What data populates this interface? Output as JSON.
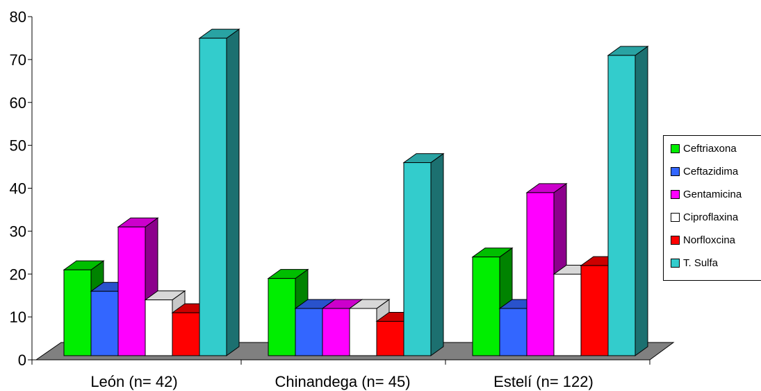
{
  "chart_data": {
    "type": "bar",
    "categories": [
      "León (n= 42)",
      "Chinandega (n= 45)",
      "Estelí (n= 122)"
    ],
    "series": [
      {
        "name": "Ceftriaxona",
        "color": "#00ee00",
        "values": [
          20,
          18,
          23
        ]
      },
      {
        "name": "Ceftazidima",
        "color": "#3366ff",
        "values": [
          15,
          11,
          11
        ]
      },
      {
        "name": "Gentamicina",
        "color": "#ff00ff",
        "values": [
          30,
          11,
          38
        ]
      },
      {
        "name": "Ciproflaxina",
        "color": "#ffffff",
        "values": [
          13,
          11,
          19
        ]
      },
      {
        "name": "Norfloxcina",
        "color": "#ff0000",
        "values": [
          10,
          8,
          21
        ]
      },
      {
        "name": "T. Sulfa",
        "color": "#33cccc",
        "values": [
          74,
          45,
          70
        ]
      }
    ],
    "yticks": [
      "0",
      "10",
      "20",
      "30",
      "40",
      "50",
      "60",
      "70",
      "80"
    ],
    "ylim": [
      0,
      80
    ],
    "title": "",
    "xlabel": "",
    "ylabel": "",
    "grid": false,
    "three_d": true,
    "legend_position": "right"
  }
}
